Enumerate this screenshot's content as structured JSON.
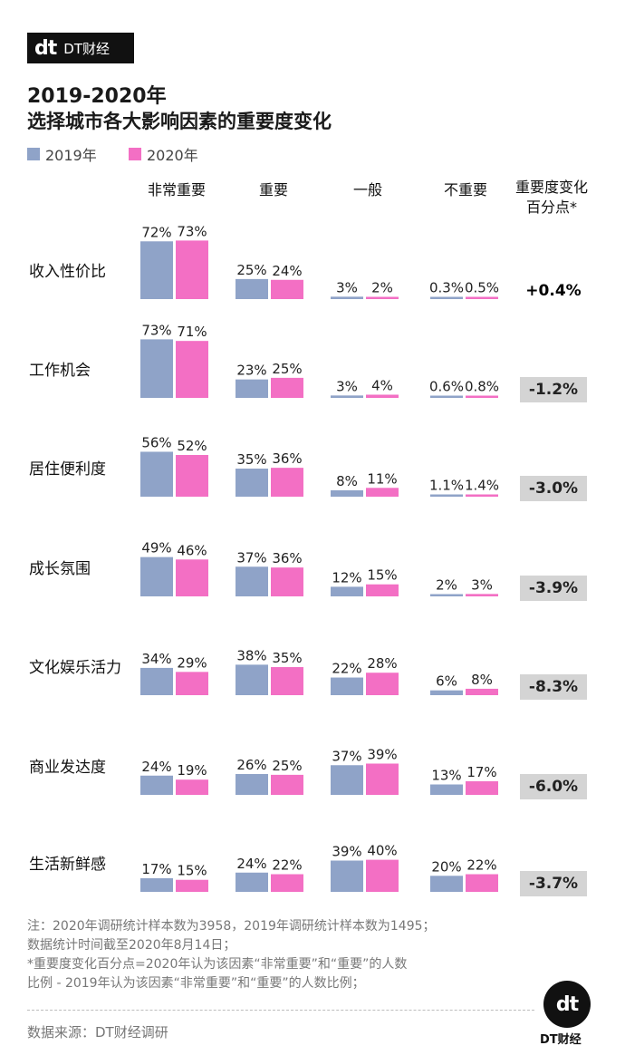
{
  "brand": {
    "mark": "dt",
    "name": "DT财经",
    "footer_name": "DT财经"
  },
  "header": {
    "title_line1": "2019-2020年",
    "title_line2": "选择城市各大影响因素的重要度变化"
  },
  "colors": {
    "y2019": "#8fa3c8",
    "y2020": "#f36fc4",
    "badge_bg": "#d4d4d4"
  },
  "chart_data": {
    "type": "bar",
    "title": "2019-2020年 选择城市各大影响因素的重要度变化",
    "legend": [
      "2019年",
      "2020年"
    ],
    "columns": [
      "非常重要",
      "重要",
      "一般",
      "不重要"
    ],
    "change_header_line1": "重要度变化",
    "change_header_line2": "百分点*",
    "rows": [
      {
        "factor": "收入性价比",
        "values_2019": [
          72,
          25,
          3,
          0.3
        ],
        "values_2020": [
          73,
          24,
          2,
          0.5
        ],
        "change": "+0.4%"
      },
      {
        "factor": "工作机会",
        "values_2019": [
          73,
          23,
          3,
          0.6
        ],
        "values_2020": [
          71,
          25,
          4,
          0.8
        ],
        "change": "-1.2%"
      },
      {
        "factor": "居住便利度",
        "values_2019": [
          56,
          35,
          8,
          1.1
        ],
        "values_2020": [
          52,
          36,
          11,
          1.4
        ],
        "change": "-3.0%"
      },
      {
        "factor": "成长氛围",
        "values_2019": [
          49,
          37,
          12,
          2
        ],
        "values_2020": [
          46,
          36,
          15,
          3
        ],
        "change": "-3.9%"
      },
      {
        "factor": "文化娱乐活力",
        "values_2019": [
          34,
          38,
          22,
          6
        ],
        "values_2020": [
          29,
          35,
          28,
          8
        ],
        "change": "-8.3%"
      },
      {
        "factor": "商业发达度",
        "values_2019": [
          24,
          26,
          37,
          13
        ],
        "values_2020": [
          19,
          25,
          39,
          17
        ],
        "change": "-6.0%"
      },
      {
        "factor": "生活新鲜感",
        "values_2019": [
          17,
          24,
          39,
          20
        ],
        "values_2020": [
          15,
          22,
          40,
          22
        ],
        "change": "-3.7%"
      }
    ]
  },
  "notes": {
    "line1": "注：2020年调研统计样本数为3958，2019年调研统计样本数为1495；",
    "line2": "数据统计时间截至2020年8月14日；",
    "line3": "*重要度变化百分点=2020年认为该因素“非常重要”和“重要”的人数",
    "line4": "比例 - 2019年认为该因素“非常重要”和“重要”的人数比例；"
  },
  "source": "数据来源：DT财经调研"
}
